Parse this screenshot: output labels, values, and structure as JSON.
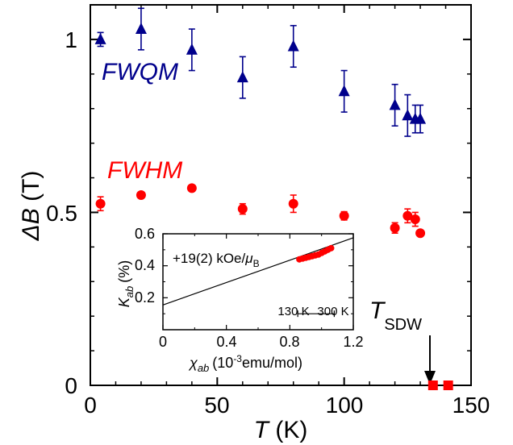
{
  "chart_data": [
    {
      "type": "scatter",
      "xlabel": {
        "symbol": "T",
        "unit": "(K)"
      },
      "ylabel": {
        "symbol": "ΔB",
        "unit": "(T)"
      },
      "xlim": [
        0,
        150
      ],
      "ylim": [
        0,
        1.1
      ],
      "xticks": [
        0,
        50,
        100,
        150
      ],
      "xtick_labels": [
        "0",
        "50",
        "100",
        "150"
      ],
      "yticks": [
        0,
        0.5,
        1
      ],
      "ytick_labels": [
        "0",
        "0.5",
        "1"
      ],
      "series": [
        {
          "name": "FWQM",
          "color": "#00008c",
          "marker": "triangle",
          "points": [
            {
              "x": 4,
              "y": 1.0,
              "err": 0.02
            },
            {
              "x": 20,
              "y": 1.03,
              "err": 0.06
            },
            {
              "x": 40,
              "y": 0.97,
              "err": 0.06
            },
            {
              "x": 60,
              "y": 0.89,
              "err": 0.06
            },
            {
              "x": 80,
              "y": 0.98,
              "err": 0.06
            },
            {
              "x": 100,
              "y": 0.85,
              "err": 0.06
            },
            {
              "x": 120,
              "y": 0.81,
              "err": 0.06
            },
            {
              "x": 125,
              "y": 0.78,
              "err": 0.06
            },
            {
              "x": 128,
              "y": 0.77,
              "err": 0.04
            },
            {
              "x": 130,
              "y": 0.77,
              "err": 0.04
            }
          ]
        },
        {
          "name": "FWHM",
          "color": "#ff0000",
          "marker": "circle",
          "points": [
            {
              "x": 4,
              "y": 0.525,
              "err": 0.02
            },
            {
              "x": 20,
              "y": 0.55,
              "err": 0.008
            },
            {
              "x": 40,
              "y": 0.57,
              "err": 0.008
            },
            {
              "x": 60,
              "y": 0.51,
              "err": 0.015
            },
            {
              "x": 80,
              "y": 0.525,
              "err": 0.025
            },
            {
              "x": 100,
              "y": 0.49,
              "err": 0.012
            },
            {
              "x": 120,
              "y": 0.455,
              "err": 0.015
            },
            {
              "x": 125,
              "y": 0.49,
              "err": 0.02
            },
            {
              "x": 128,
              "y": 0.48,
              "err": 0.02
            },
            {
              "x": 130,
              "y": 0.44,
              "err": 0.008
            }
          ]
        },
        {
          "name": "",
          "color": "#ff0000",
          "marker": "square",
          "points": [
            {
              "x": 135,
              "y": 0
            },
            {
              "x": 141,
              "y": 0
            }
          ]
        }
      ],
      "series_labels": [
        "FWQM",
        "FWHM"
      ],
      "annotations": [
        {
          "text": "T",
          "subscript": "SDW",
          "arrow_to": {
            "x": 133,
            "y": 0
          }
        }
      ]
    },
    {
      "type": "scatter",
      "xlabel": {
        "symbol": "χ",
        "subscript": "ab",
        "unit_prefix": "(10",
        "unit_exponent": "-3",
        "unit_suffix": "emu/mol)"
      },
      "ylabel": {
        "symbol": "K",
        "subscript": "ab",
        "unit": "(%)"
      },
      "xlim": [
        0,
        1.2
      ],
      "ylim": [
        0,
        0.6
      ],
      "xticks": [
        0,
        0.4,
        0.8,
        1.2
      ],
      "xtick_labels": [
        "0",
        "0.4",
        "0.8",
        "1.2"
      ],
      "yticks": [
        0.2,
        0.4,
        0.6
      ],
      "ytick_labels": [
        "0.2",
        "0.4",
        "0.6"
      ],
      "fit_line": {
        "x": [
          0,
          1.2
        ],
        "y": [
          0.155,
          0.575
        ]
      },
      "fit_label": {
        "text": "+19(2) kOe/",
        "symbol": "μ",
        "subscript": "B"
      },
      "range_bar": {
        "x_start": 0.85,
        "x_end": 1.08,
        "y": 0.1,
        "left_label": "130 K",
        "right_label": "300 K"
      },
      "series": [
        {
          "color": "#ff0000",
          "marker": "circle",
          "points": [
            {
              "x": 0.86,
              "y": 0.44
            },
            {
              "x": 0.88,
              "y": 0.445
            },
            {
              "x": 0.9,
              "y": 0.45
            },
            {
              "x": 0.92,
              "y": 0.455
            },
            {
              "x": 0.94,
              "y": 0.46
            },
            {
              "x": 0.96,
              "y": 0.465
            },
            {
              "x": 0.98,
              "y": 0.47
            },
            {
              "x": 1.0,
              "y": 0.48
            },
            {
              "x": 1.02,
              "y": 0.49
            },
            {
              "x": 1.04,
              "y": 0.5
            },
            {
              "x": 1.06,
              "y": 0.51
            }
          ]
        }
      ]
    }
  ]
}
